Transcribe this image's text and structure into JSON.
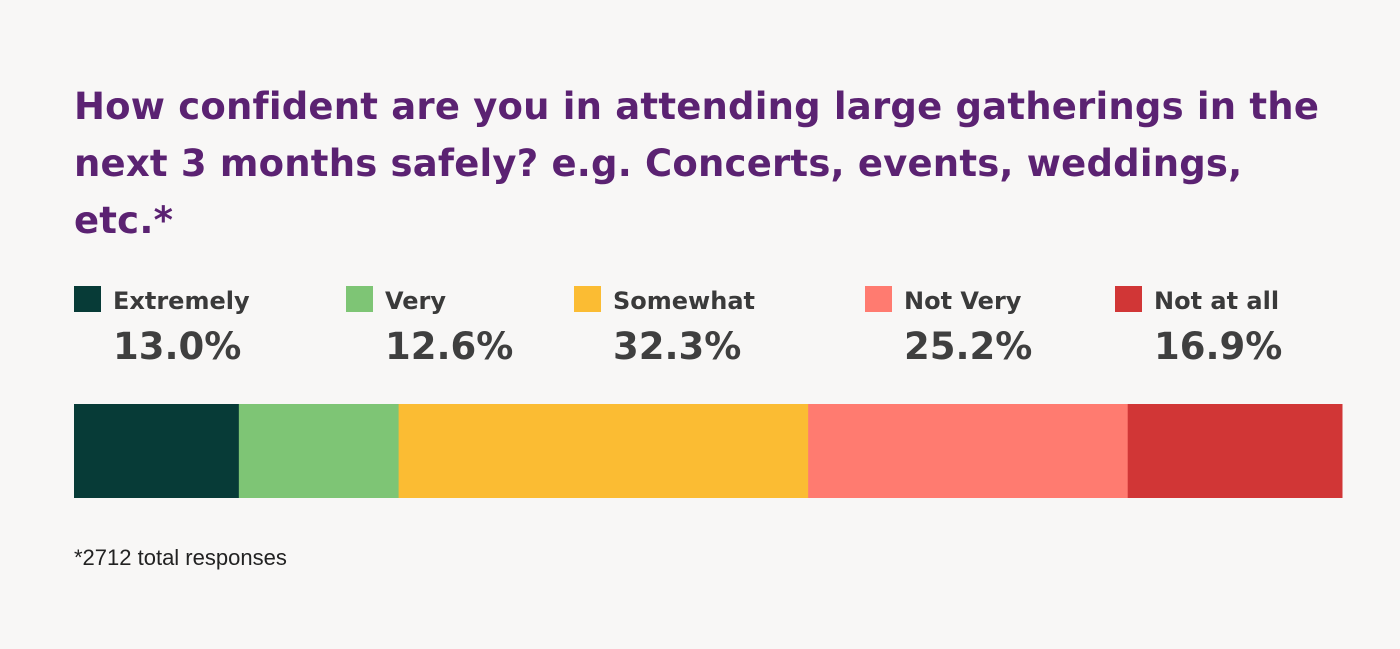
{
  "chart_data": {
    "type": "bar",
    "orientation": "horizontal-stacked-100",
    "title": "How confident are you in attending large gatherings in the next 3 months safely? e.g. Concerts, events, weddings, etc.*",
    "categories": [
      "Extremely",
      "Very",
      "Somewhat",
      "Not Very",
      "Not at all"
    ],
    "values": [
      13.0,
      12.6,
      32.3,
      25.2,
      16.9
    ],
    "value_labels": [
      "13.0%",
      "12.6%",
      "32.3%",
      "25.2%",
      "16.9%"
    ],
    "colors": [
      "#073b37",
      "#7ec575",
      "#fbbc33",
      "#ff7b70",
      "#d13636"
    ],
    "unit": "%",
    "legend_position": "top",
    "footnote": "*2712 total responses"
  }
}
